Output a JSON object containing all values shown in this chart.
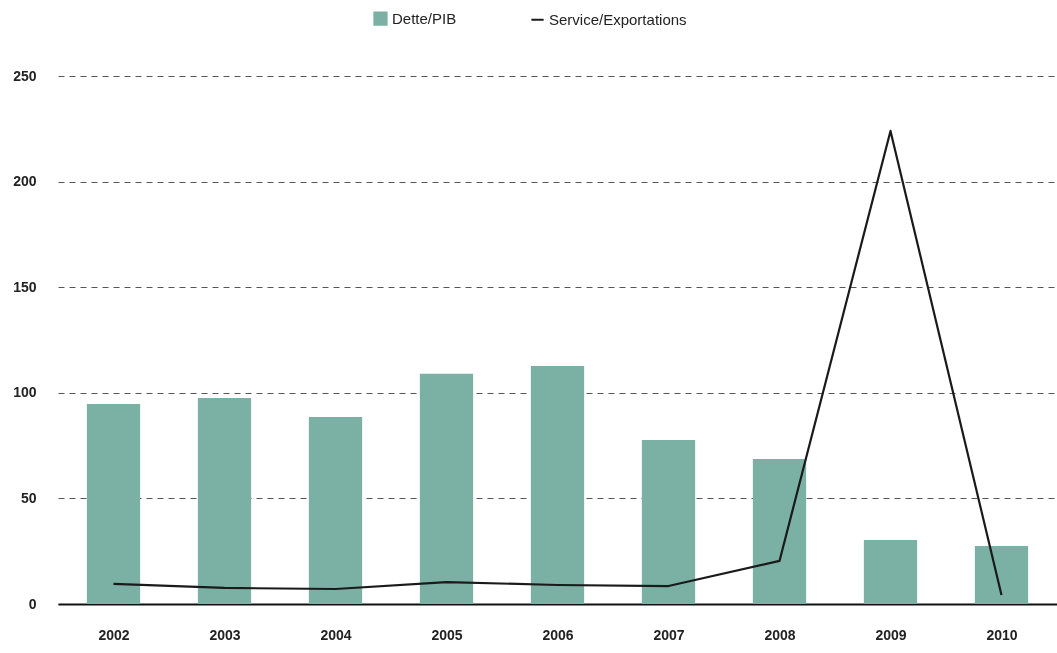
{
  "chart_data": {
    "type": "bar",
    "categories": [
      "2002",
      "2003",
      "2004",
      "2005",
      "2006",
      "2007",
      "2008",
      "2009",
      "2010"
    ],
    "series": [
      {
        "name": "Dette/PIB",
        "color": "#7bb1a4",
        "values": [
          94.7,
          97.5,
          88.5,
          109,
          112.7,
          77.7,
          68.7,
          30.3,
          27.5
        ]
      },
      {
        "name": "Service/Exportations",
        "type": "line",
        "color": "#1a1a1a",
        "values": [
          9.5,
          7.6,
          7.1,
          10.4,
          9,
          8.5,
          20.4,
          224,
          4.3
        ]
      }
    ],
    "ylim": [
      0,
      250
    ],
    "yticks": [
      0,
      50,
      100,
      150,
      200,
      250
    ],
    "grid": "y",
    "legend": "top",
    "marker": "none"
  }
}
